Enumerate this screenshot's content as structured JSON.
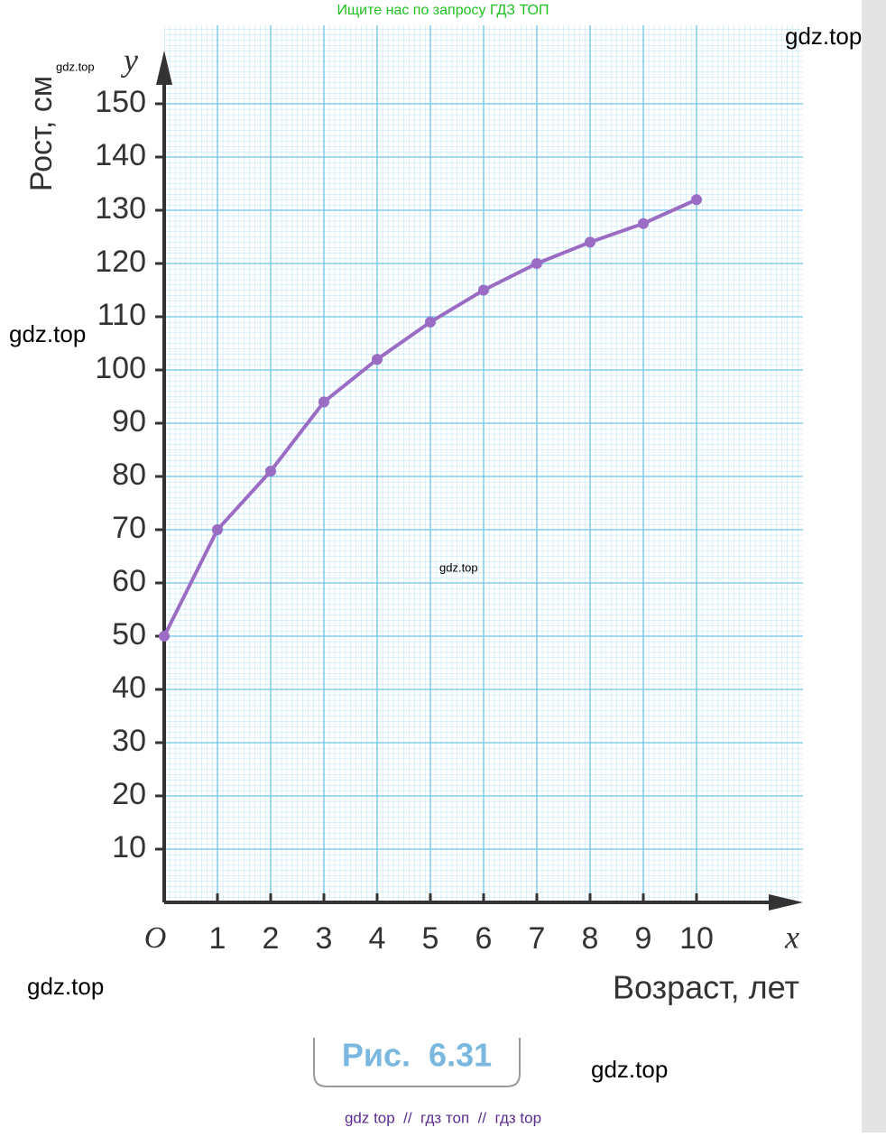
{
  "header": {
    "search_hint": "Ищите нас по запросу ГДЗ ТОП"
  },
  "watermarks": [
    "gdz.top",
    "gdz.top",
    "gdz.top",
    "gdz.top",
    "gdz.top",
    "gdz.top"
  ],
  "chart_data": {
    "type": "line",
    "x_axis_letter": "x",
    "y_axis_letter": "y",
    "origin_label": "O",
    "x_label": "Возраст, лет",
    "y_label": "Рост, см",
    "x": [
      0,
      1,
      2,
      3,
      4,
      5,
      6,
      7,
      8,
      9,
      10
    ],
    "series": [
      {
        "name": "Рост",
        "color": "#9a6cc4",
        "values": [
          50,
          70,
          81,
          94,
          102,
          109,
          115,
          120,
          124,
          127.5,
          132
        ]
      }
    ],
    "xlim": [
      0,
      12
    ],
    "ylim": [
      0,
      160
    ],
    "xticks": [
      1,
      2,
      3,
      4,
      5,
      6,
      7,
      8,
      9,
      10
    ],
    "yticks": [
      10,
      20,
      30,
      40,
      50,
      60,
      70,
      80,
      90,
      100,
      110,
      120,
      130,
      140,
      150
    ],
    "grid": true,
    "markers": true
  },
  "caption": "Рис.  6.31",
  "footer": "gdz top  //  гдз топ  //  гдз top"
}
